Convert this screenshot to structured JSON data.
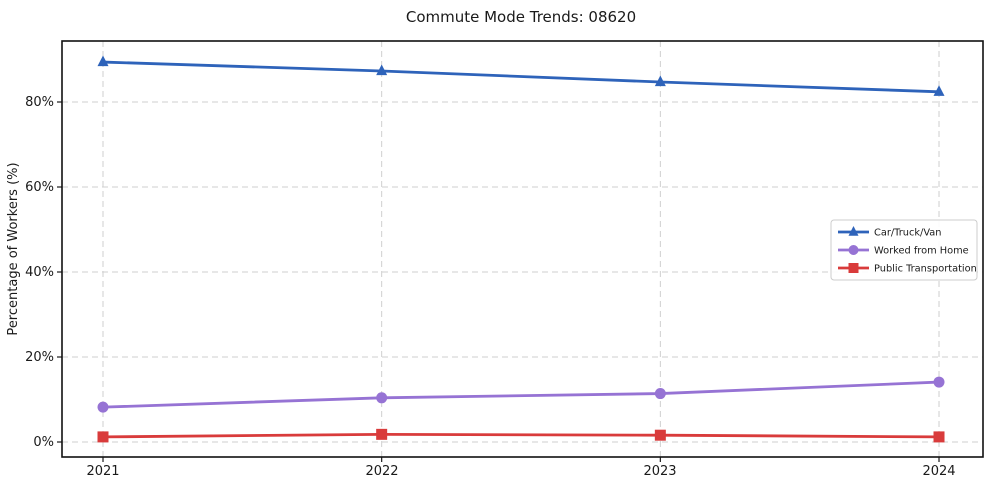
{
  "chart_data": {
    "type": "line",
    "title": "Commute Mode Trends: 08620",
    "xlabel": "",
    "ylabel": "Percentage of Workers (%)",
    "categories": [
      "2021",
      "2022",
      "2023",
      "2024"
    ],
    "series": [
      {
        "name": "Car/Truck/Van",
        "values": [
          89.4,
          87.3,
          84.7,
          82.4
        ],
        "color": "#2e63ba",
        "marker": "triangle"
      },
      {
        "name": "Worked from Home",
        "values": [
          8.2,
          10.4,
          11.4,
          14.1
        ],
        "color": "#9673d4",
        "marker": "circle"
      },
      {
        "name": "Public Transportation",
        "values": [
          1.2,
          1.8,
          1.6,
          1.2
        ],
        "color": "#d93b3b",
        "marker": "square"
      }
    ],
    "ytick_values": [
      0,
      20,
      40,
      60,
      80
    ],
    "ytick_labels": [
      "0%",
      "20%",
      "40%",
      "60%",
      "80%"
    ],
    "ylim": [
      -3.5,
      94.5
    ],
    "grid": "dashed",
    "grid_color": "#cfcfcf",
    "legend_position": "center-right"
  }
}
